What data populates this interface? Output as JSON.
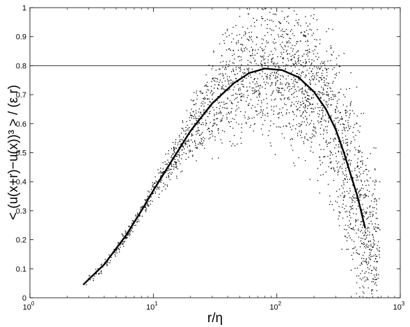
{
  "chart_data": {
    "type": "scatter",
    "x_scale": "log",
    "xlim": [
      1,
      1000
    ],
    "ylim": [
      0,
      1
    ],
    "grid": false,
    "xlabel": "r/η",
    "ylabel": "< (u(x+r)−u(x))³ > / (ε r)",
    "x_ticks": [
      {
        "value": 1,
        "base": "10",
        "exp": "0"
      },
      {
        "value": 10,
        "base": "10",
        "exp": "1"
      },
      {
        "value": 100,
        "base": "10",
        "exp": "2"
      },
      {
        "value": 1000,
        "base": "10",
        "exp": "3"
      }
    ],
    "y_ticks": [
      "0",
      "0.1",
      "0.2",
      "0.3",
      "0.4",
      "0.5",
      "0.6",
      "0.7",
      "0.8",
      "0.9",
      "1"
    ],
    "reference_line": {
      "y": 0.8
    },
    "fit_curve": {
      "x": [
        2.7,
        4,
        6,
        8,
        10,
        14,
        20,
        30,
        45,
        60,
        80,
        110,
        150,
        200,
        250,
        300,
        350,
        400,
        450,
        520
      ],
      "y": [
        0.045,
        0.115,
        0.215,
        0.3,
        0.37,
        0.47,
        0.575,
        0.67,
        0.74,
        0.775,
        0.79,
        0.785,
        0.76,
        0.71,
        0.65,
        0.58,
        0.5,
        0.42,
        0.35,
        0.24
      ]
    },
    "scatter_envelope": {
      "x": [
        2.7,
        4,
        6,
        8,
        10,
        14,
        20,
        30,
        45,
        60,
        80,
        110,
        150,
        200,
        250,
        300,
        350,
        400,
        450,
        520,
        600,
        680
      ],
      "center_y": [
        0.045,
        0.115,
        0.215,
        0.3,
        0.37,
        0.47,
        0.575,
        0.67,
        0.74,
        0.775,
        0.79,
        0.785,
        0.76,
        0.71,
        0.65,
        0.58,
        0.5,
        0.42,
        0.35,
        0.24,
        0.17,
        0.12
      ],
      "spread": [
        0.01,
        0.01,
        0.012,
        0.015,
        0.02,
        0.03,
        0.05,
        0.08,
        0.1,
        0.11,
        0.12,
        0.12,
        0.12,
        0.12,
        0.13,
        0.14,
        0.15,
        0.15,
        0.15,
        0.15,
        0.15,
        0.15
      ]
    }
  }
}
